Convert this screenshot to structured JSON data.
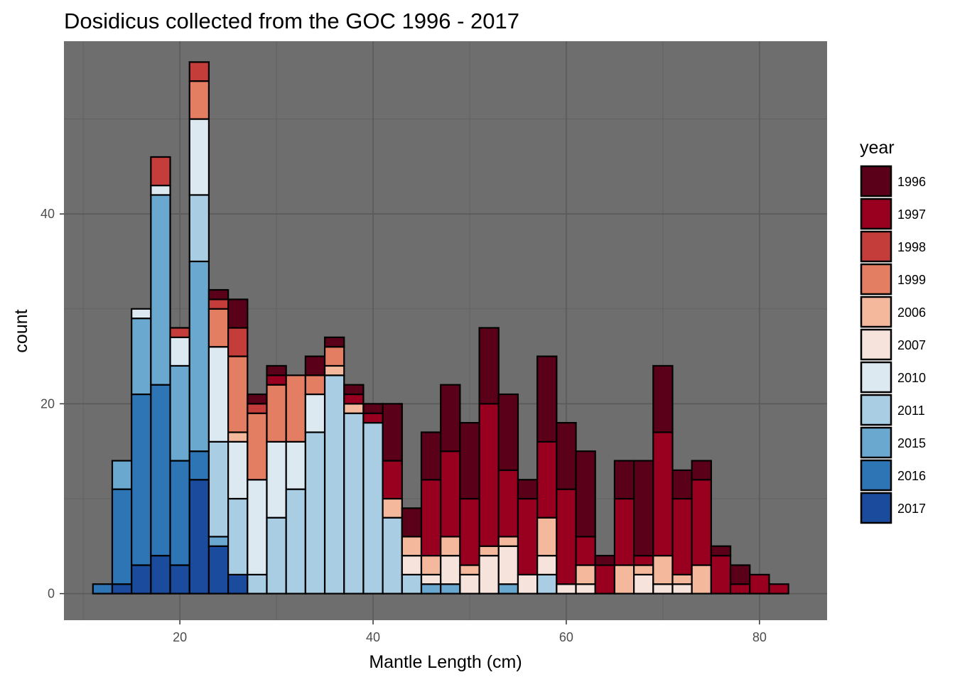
{
  "chart_data": {
    "type": "bar",
    "stacked": true,
    "title": "Dosidicus collected from the GOC 1996 - 2017",
    "xlabel": "Mantle Length (cm)",
    "ylabel": "count",
    "xlim": [
      8,
      87
    ],
    "ylim": [
      -2.8,
      58.2
    ],
    "x_ticks": [
      20,
      40,
      60,
      80
    ],
    "x_tick_labels": [
      "20",
      "40",
      "60",
      "80"
    ],
    "y_ticks": [
      0,
      20,
      40
    ],
    "y_tick_labels": [
      "0",
      "20",
      "40"
    ],
    "grid": true,
    "panel_background": "#6e6e6e",
    "legend": {
      "title": "year",
      "position": "right",
      "entries": [
        {
          "label": "1996",
          "color": "#5a0018"
        },
        {
          "label": "1997",
          "color": "#990020"
        },
        {
          "label": "1998",
          "color": "#c43d3b"
        },
        {
          "label": "1999",
          "color": "#e37e63"
        },
        {
          "label": "2006",
          "color": "#f4b89c"
        },
        {
          "label": "2007",
          "color": "#f6e3dc"
        },
        {
          "label": "2010",
          "color": "#dde9f1"
        },
        {
          "label": "2011",
          "color": "#a9cde3"
        },
        {
          "label": "2015",
          "color": "#6aa8d0"
        },
        {
          "label": "2016",
          "color": "#2e75b6"
        },
        {
          "label": "2017",
          "color": "#1a4b9c"
        }
      ]
    },
    "bin_width": 2,
    "x": [
      12,
      14,
      16,
      18,
      20,
      22,
      24,
      26,
      28,
      30,
      32,
      34,
      36,
      38,
      40,
      42,
      44,
      46,
      48,
      50,
      52,
      54,
      56,
      58,
      60,
      62,
      64,
      66,
      68,
      70,
      72,
      74,
      76,
      78,
      80,
      82
    ],
    "series": [
      {
        "name": "2017",
        "values": [
          0,
          1,
          3,
          4,
          3,
          12,
          5,
          2,
          0,
          0,
          0,
          0,
          0,
          0,
          0,
          0,
          0,
          0,
          0,
          0,
          0,
          0,
          0,
          0,
          0,
          0,
          0,
          0,
          0,
          0,
          0,
          0,
          0,
          0,
          0,
          0
        ]
      },
      {
        "name": "2016",
        "values": [
          1,
          10,
          18,
          18,
          11,
          3,
          0,
          0,
          0,
          0,
          0,
          0,
          0,
          0,
          0,
          0,
          0,
          0,
          0,
          0,
          0,
          0,
          0,
          0,
          0,
          0,
          0,
          0,
          0,
          0,
          0,
          0,
          0,
          0,
          0,
          0
        ]
      },
      {
        "name": "2015",
        "values": [
          0,
          3,
          8,
          20,
          10,
          20,
          1,
          0,
          0,
          0,
          0,
          0,
          0,
          0,
          0,
          0,
          0,
          1,
          1,
          0,
          0,
          1,
          0,
          0,
          0,
          0,
          0,
          0,
          0,
          0,
          0,
          0,
          0,
          0,
          0,
          0
        ]
      },
      {
        "name": "2011",
        "values": [
          0,
          0,
          0,
          0,
          0,
          7,
          10,
          8,
          2,
          8,
          11,
          17,
          23,
          19,
          18,
          8,
          2,
          0,
          0,
          0,
          0,
          0,
          0,
          2,
          0,
          0,
          0,
          0,
          0,
          0,
          0,
          0,
          0,
          0,
          0,
          0
        ]
      },
      {
        "name": "2010",
        "values": [
          0,
          0,
          1,
          1,
          3,
          8,
          10,
          6,
          10,
          8,
          5,
          4,
          0,
          0,
          0,
          0,
          0,
          0,
          0,
          0,
          0,
          0,
          0,
          0,
          0,
          0,
          0,
          0,
          0,
          0,
          0,
          0,
          0,
          0,
          0,
          0
        ]
      },
      {
        "name": "2007",
        "values": [
          0,
          0,
          0,
          0,
          0,
          0,
          0,
          0,
          0,
          0,
          0,
          0,
          0,
          0,
          0,
          0,
          2,
          1,
          3,
          2,
          4,
          4,
          2,
          2,
          1,
          1,
          0,
          0,
          2,
          1,
          1,
          0,
          0,
          0,
          0,
          0
        ]
      },
      {
        "name": "2006",
        "values": [
          0,
          0,
          0,
          0,
          0,
          0,
          0,
          1,
          0,
          0,
          0,
          0,
          1,
          1,
          0,
          2,
          2,
          2,
          2,
          1,
          1,
          1,
          0,
          4,
          0,
          2,
          0,
          3,
          1,
          3,
          1,
          3,
          0,
          0,
          0,
          0
        ]
      },
      {
        "name": "1999",
        "values": [
          0,
          0,
          0,
          0,
          0,
          4,
          4,
          8,
          7,
          6,
          7,
          2,
          2,
          0,
          0,
          0,
          0,
          0,
          0,
          0,
          0,
          0,
          0,
          0,
          0,
          0,
          0,
          0,
          0,
          0,
          0,
          0,
          0,
          0,
          0,
          0
        ]
      },
      {
        "name": "1998",
        "values": [
          0,
          0,
          0,
          3,
          1,
          2,
          1,
          3,
          1,
          0,
          0,
          0,
          0,
          0,
          0,
          0,
          0,
          0,
          0,
          0,
          0,
          0,
          0,
          0,
          0,
          0,
          0,
          0,
          0,
          0,
          0,
          0,
          0,
          0,
          0,
          0
        ]
      },
      {
        "name": "1997",
        "values": [
          0,
          0,
          0,
          0,
          0,
          0,
          0,
          0,
          0,
          1,
          0,
          0,
          0,
          1,
          1,
          4,
          0,
          8,
          9,
          7,
          15,
          7,
          8,
          8,
          10,
          3,
          3,
          7,
          1,
          13,
          8,
          9,
          4,
          1,
          2,
          1
        ]
      },
      {
        "name": "1996",
        "values": [
          0,
          0,
          0,
          0,
          0,
          0,
          1,
          3,
          1,
          1,
          0,
          2,
          1,
          1,
          1,
          6,
          3,
          5,
          7,
          8,
          8,
          8,
          2,
          9,
          7,
          9,
          1,
          4,
          10,
          7,
          3,
          2,
          1,
          2,
          0,
          0
        ]
      }
    ]
  }
}
